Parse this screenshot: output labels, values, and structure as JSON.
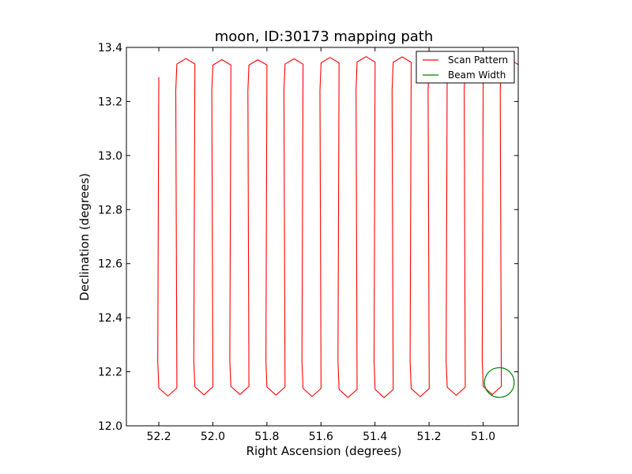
{
  "chart_data": {
    "type": "line",
    "title": "moon, ID:30173 mapping path",
    "xlabel": "Right Ascension (degrees)",
    "ylabel": "Declination (degrees)",
    "xlim": [
      52.32,
      50.87
    ],
    "ylim": [
      12.0,
      13.4
    ],
    "x_reversed": true,
    "xticks": [
      52.2,
      52.0,
      51.8,
      51.6,
      51.4,
      51.2,
      51.0
    ],
    "xtick_labels": [
      "52.2",
      "52.0",
      "51.8",
      "51.6",
      "51.4",
      "51.2",
      "51.0"
    ],
    "yticks": [
      12.0,
      12.2,
      12.4,
      12.6,
      12.8,
      13.0,
      13.2,
      13.4
    ],
    "ytick_labels": [
      "12.0",
      "12.2",
      "12.4",
      "12.6",
      "12.8",
      "13.0",
      "13.2",
      "13.4"
    ],
    "grid": false,
    "legend": {
      "position": "top-right"
    },
    "series": [
      {
        "name": "Scan Pattern",
        "color": "#ff0000",
        "kind": "scan",
        "scan_x_start": 52.2,
        "scan_x_step": -0.0667,
        "scan_count": 21,
        "y_top": 13.34,
        "y_bottom": 12.14,
        "start_y": 13.29
      },
      {
        "name": "Beam Width",
        "color": "#008000",
        "kind": "circle",
        "center": [
          50.94,
          12.16
        ],
        "radius_deg": 0.055
      }
    ]
  }
}
